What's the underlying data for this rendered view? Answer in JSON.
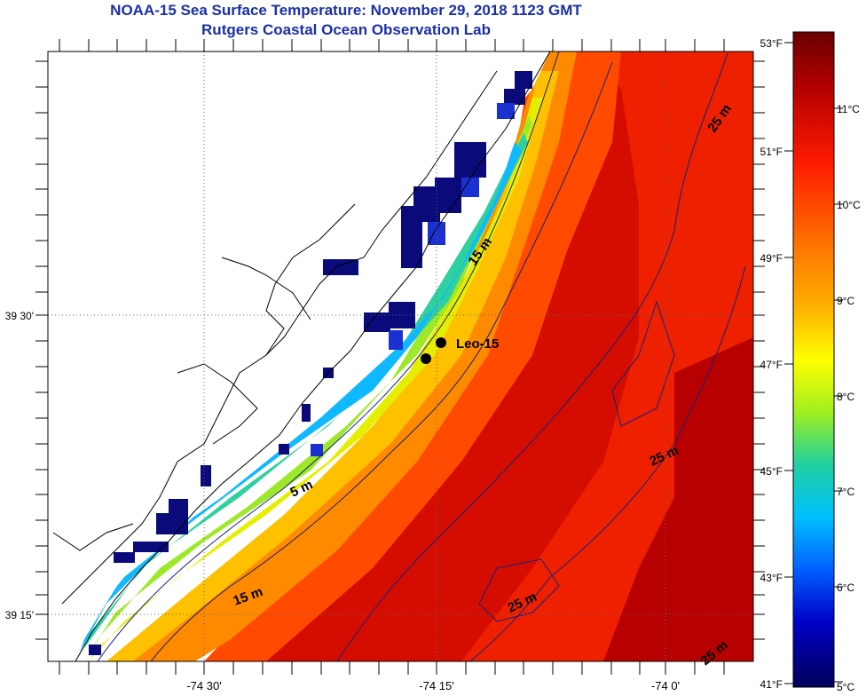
{
  "header": {
    "title": "NOAA-15 Sea Surface Temperature:  November 29, 2018 1123 GMT",
    "subtitle": "Rutgers Coastal Ocean Observation Lab"
  },
  "map": {
    "longitude_labels": [
      "-74 30'",
      "-74 15'",
      "-74 0'"
    ],
    "latitude_labels": [
      "39 30'",
      "39 15'"
    ],
    "station_label": "Leo-15",
    "depth_labels": [
      "5 m",
      "15 m",
      "15 m",
      "25 m",
      "25 m",
      "25 m",
      "25 m"
    ]
  },
  "colorbar": {
    "fahrenheit_labels": [
      "53°F",
      "51°F",
      "49°F",
      "47°F",
      "45°F",
      "43°F",
      "41°F"
    ],
    "celsius_labels": [
      "11°C",
      "10°C",
      "9°C",
      "8°C",
      "7°C",
      "6°C",
      "5°C"
    ],
    "colors": [
      "#7a0000",
      "#c00000",
      "#ff2a00",
      "#ff7a00",
      "#ffb400",
      "#ffff00",
      "#a0f020",
      "#20d0a0",
      "#00c0ff",
      "#0060ff",
      "#0000c0",
      "#00005a"
    ]
  },
  "palette": {
    "title_color": "#1a2fa8",
    "land": "#ffffff",
    "cloud_mask": "#0a0a7a",
    "coastline": "#000000",
    "bathymetry": "#16207a"
  }
}
